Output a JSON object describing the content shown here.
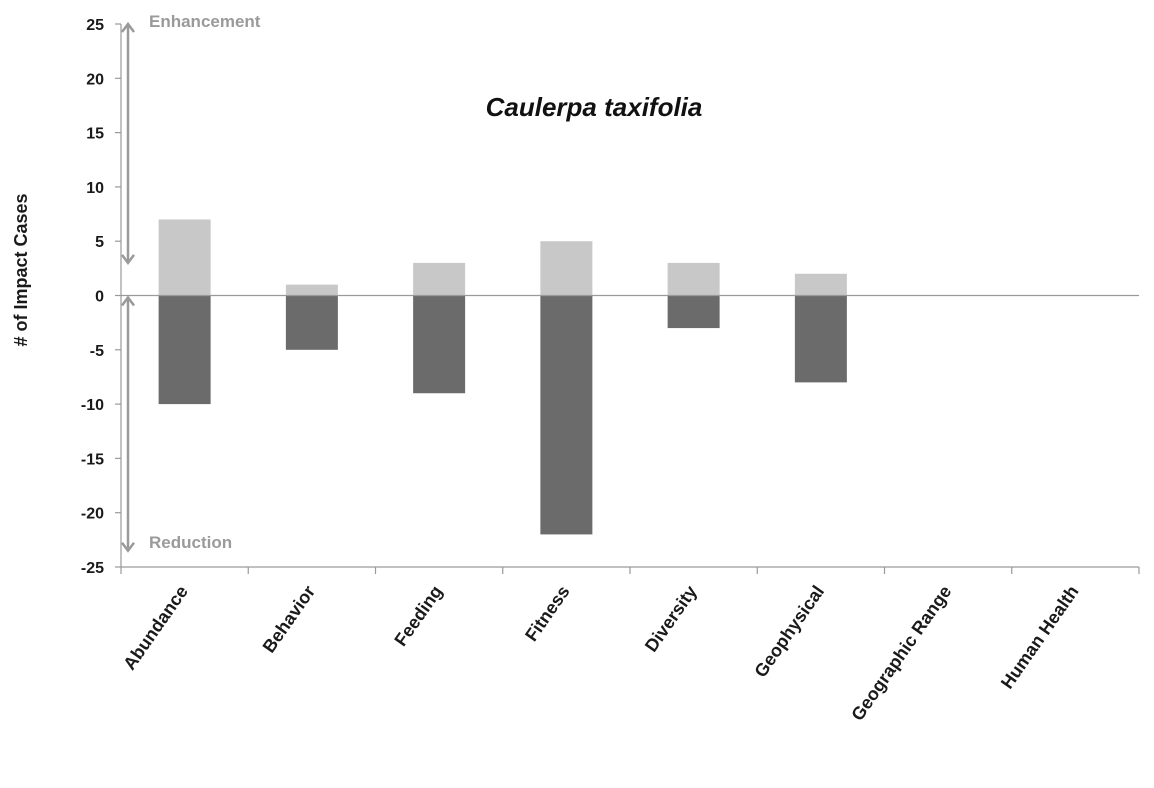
{
  "chart_data": {
    "type": "bar",
    "title": "Caulerpa taxifolia",
    "ylabel": "# of Impact Cases",
    "xlabel": "",
    "categories": [
      "Abundance",
      "Behavior",
      "Feeding",
      "Fitness",
      "Diversity",
      "Geophysical",
      "Geographic Range",
      "Human Health"
    ],
    "series": [
      {
        "values": [
          7,
          1,
          3,
          5,
          3,
          2,
          0,
          0
        ],
        "color": "#c8c8c8"
      },
      {
        "values": [
          -10,
          -5,
          -9,
          -22,
          -3,
          -8,
          0,
          0
        ],
        "color": "#6b6b6b"
      }
    ],
    "ylim": [
      -25,
      25
    ],
    "yticks": [
      25,
      20,
      15,
      10,
      5,
      0,
      -5,
      -10,
      -15,
      -20,
      -25
    ],
    "grid": false,
    "annotations": {
      "top": "Enhancement",
      "bottom": "Reduction"
    },
    "colors": {
      "axis": "#9a9a9a",
      "arrow": "#9a9a9a"
    }
  }
}
